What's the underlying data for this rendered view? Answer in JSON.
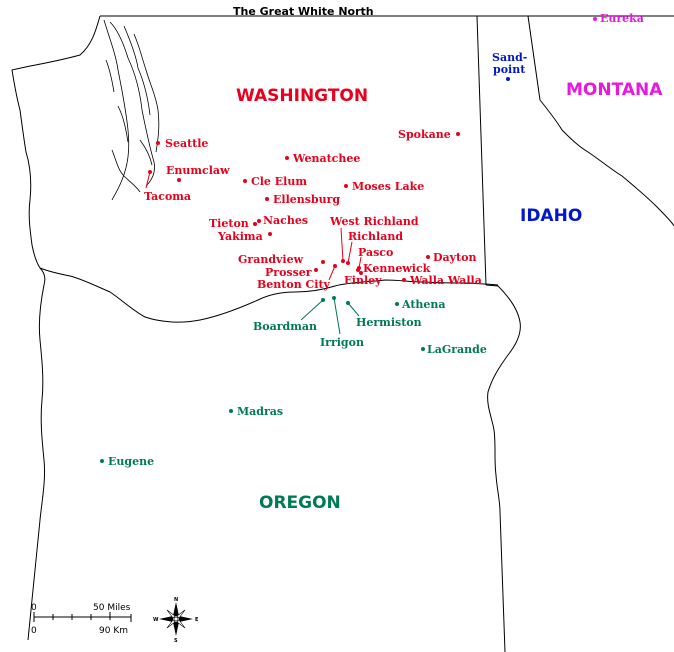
{
  "title": "The Great White North",
  "colors": {
    "washington": "#e8001c",
    "oregon": "#007a55",
    "idaho": "#0018c8",
    "montana": "#e818e0",
    "border": "#000000"
  },
  "states": {
    "washington": "WASHINGTON",
    "oregon": "OREGON",
    "idaho": "IDAHO",
    "montana": "MONTANA"
  },
  "cities": {
    "seattle": "Seattle",
    "enumclaw": "Enumclaw",
    "tacoma": "Tacoma",
    "wenatchee": "Wenatchee",
    "cle_elum": "Cle Elum",
    "ellensburg": "Ellensburg",
    "moses_lake": "Moses Lake",
    "spokane": "Spokane",
    "tieton": "Tieton",
    "naches": "Naches",
    "yakima": "Yakima",
    "west_richland": "West Richland",
    "richland": "Richland",
    "pasco": "Pasco",
    "kennewick": "Kennewick",
    "finley": "Finley",
    "dayton": "Dayton",
    "walla_walla": "Walla Walla",
    "grandview": "Grandview",
    "prosser": "Prosser",
    "benton_city": "Benton City",
    "athena": "Athena",
    "hermiston": "Hermiston",
    "boardman": "Boardman",
    "irrigon": "Irrigon",
    "lagrande": "LaGrande",
    "madras": "Madras",
    "eugene": "Eugene",
    "sandpoint_1": "Sand-",
    "sandpoint_2": "point",
    "eureka": "Eureka"
  },
  "scale_bar": {
    "miles_zero": "0",
    "miles_value": "50 Miles",
    "km_zero": "0",
    "km_value": "90 Km"
  },
  "compass": {
    "n": "N",
    "s": "S",
    "e": "E",
    "w": "W"
  }
}
